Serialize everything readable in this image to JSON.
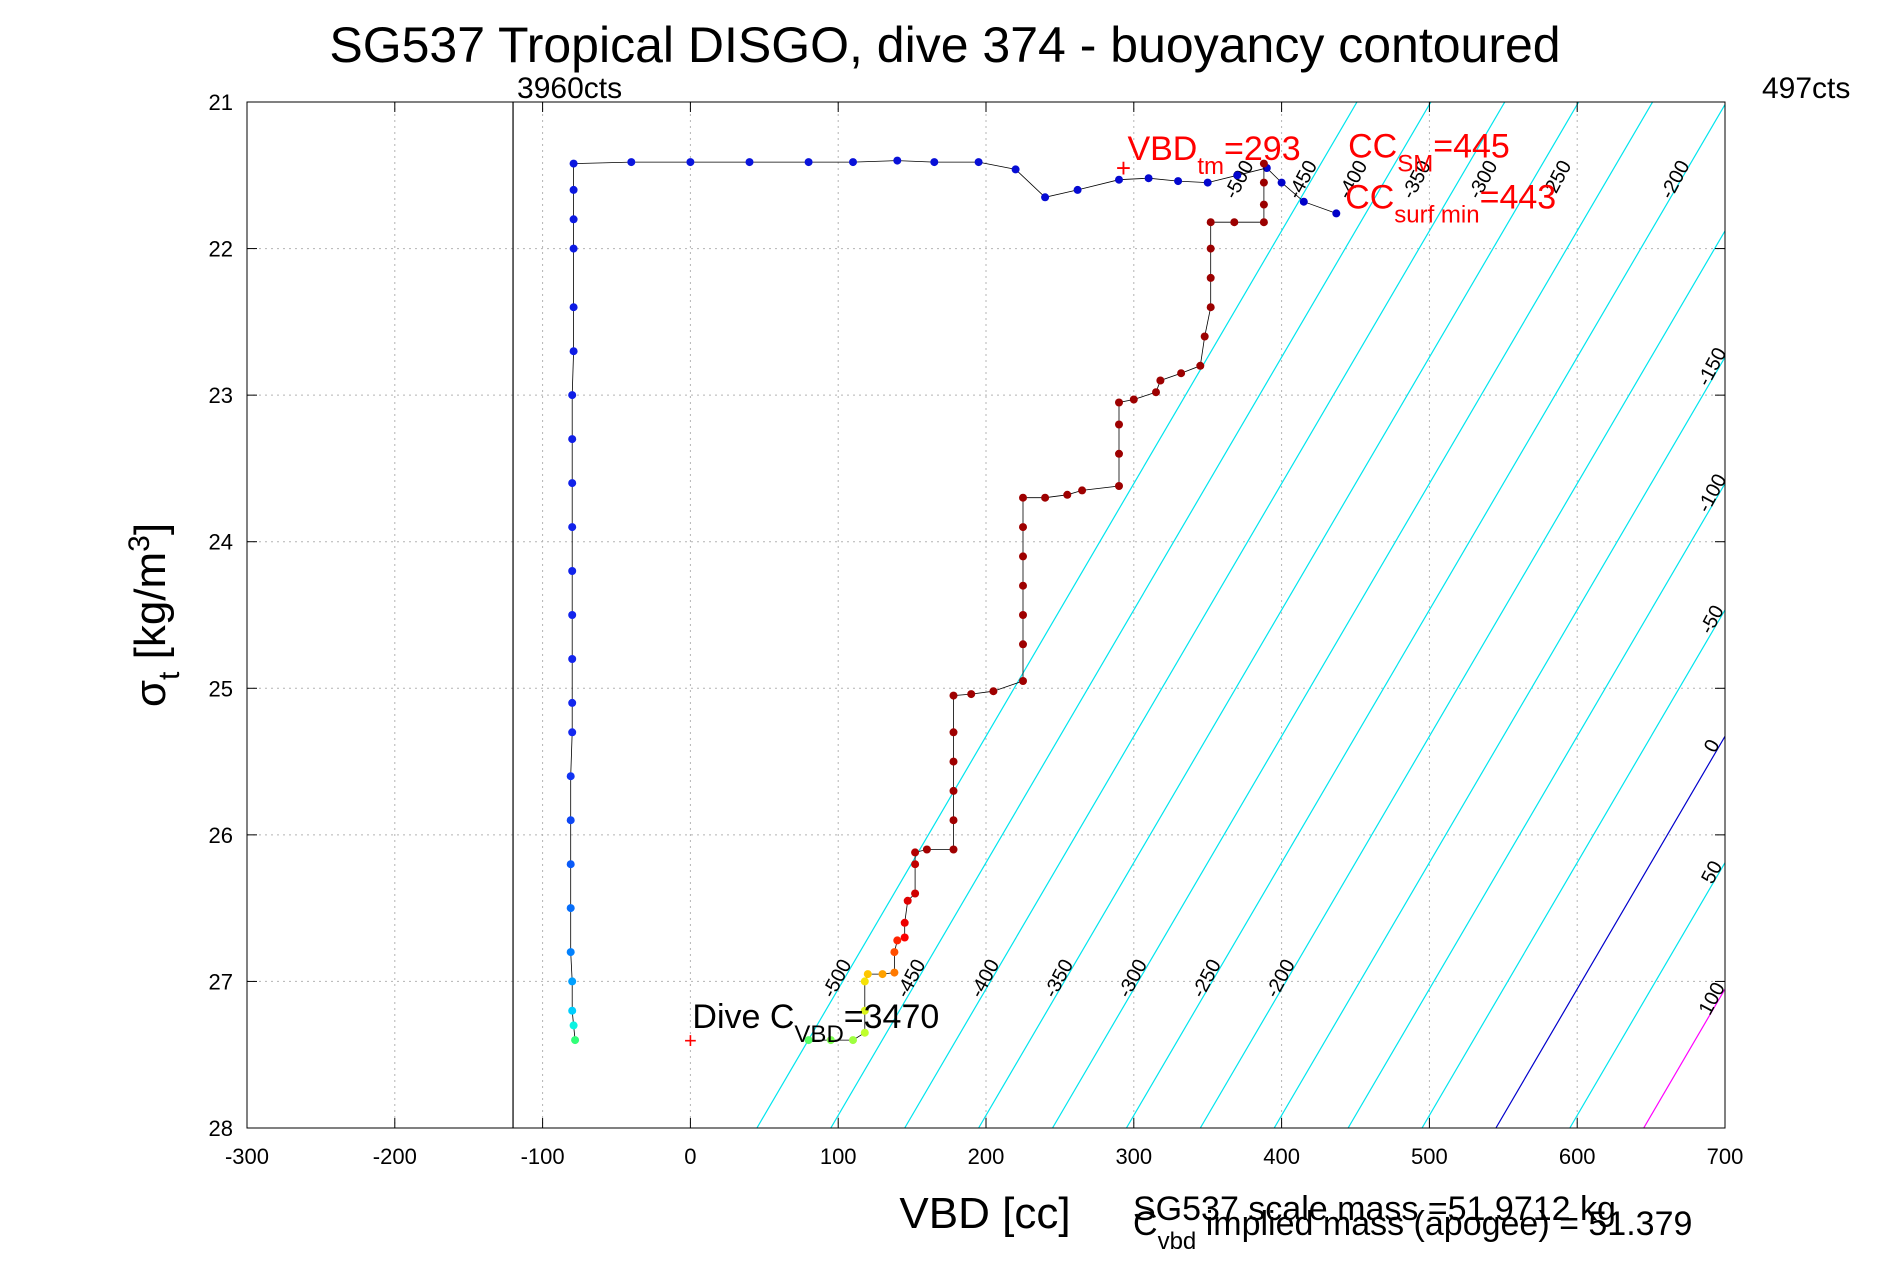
{
  "chart_data": {
    "type": "scatter",
    "title": "SG537 Tropical DISGO, dive 374 - buoyancy contoured",
    "xlabel": "VBD [cc]",
    "ylabel_main": "σ",
    "ylabel_sub": "t",
    "ylabel_rest": " [kg/m",
    "ylabel_sup": "3",
    "ylabel_close": "]",
    "xlim": [
      -300,
      700
    ],
    "ylim": [
      21,
      28
    ],
    "y_reversed": true,
    "grid": true,
    "x_ticks": [
      "-300",
      "-200",
      "-100",
      "0",
      "100",
      "200",
      "300",
      "400",
      "500",
      "600",
      "700"
    ],
    "y_ticks": [
      "21",
      "22",
      "23",
      "24",
      "25",
      "26",
      "27",
      "28"
    ],
    "colors": {
      "ascent": "#0000c8",
      "descent_deep": "#9b0000",
      "trace_line": "#000000",
      "contour_cyan": "#00e5ee",
      "contour_zero": "#0000cc",
      "contour_100": "#ff00ff",
      "annotation_red": "#ff0000"
    },
    "annotations": {
      "left_counts": "3960cts",
      "right_counts": "497cts",
      "left_count_line_x": -120,
      "vbd_tm_main": "VBD",
      "vbd_tm_sub": "tm",
      "vbd_tm_value": "=293",
      "vbd_tm_x": 293,
      "vbd_tm_y": 21.45,
      "cc_sm_main": "CC",
      "cc_sm_sub": "SM",
      "cc_sm_value": "=445",
      "cc_surf_main": "CC",
      "cc_surf_sub": "surf min",
      "cc_surf_value": "=443",
      "dive_c_main": "Dive C",
      "dive_c_sub": "VBD",
      "dive_c_value": "=3470",
      "dive_c_x": 0,
      "dive_c_y": 27.4,
      "scale_mass": "SG537 scale mass =51.9712 kg",
      "cvbd_main": "C",
      "cvbd_sub": "vbd",
      "cvbd_rest": " implied mass (apogee) = 51.379"
    },
    "contours": [
      {
        "label": "-500",
        "color": "cyan"
      },
      {
        "label": "-450",
        "color": "cyan"
      },
      {
        "label": "-400",
        "color": "cyan"
      },
      {
        "label": "-350",
        "color": "cyan"
      },
      {
        "label": "-300",
        "color": "cyan"
      },
      {
        "label": "-250",
        "color": "cyan"
      },
      {
        "label": "-200",
        "color": "cyan"
      },
      {
        "label": "-150",
        "color": "cyan"
      },
      {
        "label": "-100",
        "color": "cyan"
      },
      {
        "label": "-50",
        "color": "cyan"
      },
      {
        "label": "0",
        "color": "blue"
      },
      {
        "label": "50",
        "color": "cyan"
      },
      {
        "label": "100",
        "color": "magenta"
      }
    ],
    "contour_geometry": {
      "bottom_x_for_minus500": 45,
      "spacing": 50,
      "dx_per_sigma": -58
    },
    "series": [
      {
        "name": "ascent",
        "points": [
          [
            -78,
            27.4
          ],
          [
            -79,
            27.3
          ],
          [
            -80,
            27.2
          ],
          [
            -80,
            27.0
          ],
          [
            -81,
            26.8
          ],
          [
            -81,
            26.5
          ],
          [
            -81,
            26.2
          ],
          [
            -81,
            25.9
          ],
          [
            -81,
            25.6
          ],
          [
            -80,
            25.3
          ],
          [
            -80,
            25.1
          ],
          [
            -80,
            24.8
          ],
          [
            -80,
            24.5
          ],
          [
            -80,
            24.2
          ],
          [
            -80,
            23.9
          ],
          [
            -80,
            23.6
          ],
          [
            -80,
            23.3
          ],
          [
            -80,
            23.0
          ],
          [
            -79,
            22.7
          ],
          [
            -79,
            22.4
          ],
          [
            -79,
            22.0
          ],
          [
            -79,
            21.8
          ],
          [
            -79,
            21.6
          ],
          [
            -79,
            21.42
          ],
          [
            -40,
            21.41
          ],
          [
            0,
            21.41
          ],
          [
            40,
            21.41
          ],
          [
            80,
            21.41
          ],
          [
            110,
            21.41
          ],
          [
            140,
            21.4
          ],
          [
            165,
            21.41
          ],
          [
            195,
            21.41
          ],
          [
            220,
            21.46
          ],
          [
            240,
            21.65
          ],
          [
            262,
            21.6
          ],
          [
            290,
            21.53
          ],
          [
            310,
            21.52
          ],
          [
            330,
            21.54
          ],
          [
            350,
            21.55
          ],
          [
            370,
            21.5
          ],
          [
            390,
            21.45
          ],
          [
            400,
            21.55
          ],
          [
            415,
            21.68
          ],
          [
            437,
            21.76
          ]
        ]
      },
      {
        "name": "descent",
        "points": [
          [
            80,
            27.4
          ],
          [
            95,
            27.4
          ],
          [
            110,
            27.4
          ],
          [
            118,
            27.35
          ],
          [
            118,
            27.2
          ],
          [
            118,
            27.0
          ],
          [
            120,
            26.95
          ],
          [
            130,
            26.95
          ],
          [
            138,
            26.94
          ],
          [
            138,
            26.8
          ],
          [
            140,
            26.72
          ],
          [
            145,
            26.7
          ],
          [
            145,
            26.6
          ],
          [
            147,
            26.45
          ],
          [
            152,
            26.4
          ],
          [
            152,
            26.2
          ],
          [
            152,
            26.12
          ],
          [
            160,
            26.1
          ],
          [
            178,
            26.1
          ],
          [
            178,
            25.9
          ],
          [
            178,
            25.7
          ],
          [
            178,
            25.5
          ],
          [
            178,
            25.3
          ],
          [
            178,
            25.05
          ],
          [
            190,
            25.04
          ],
          [
            205,
            25.02
          ],
          [
            225,
            24.95
          ],
          [
            225,
            24.7
          ],
          [
            225,
            24.5
          ],
          [
            225,
            24.3
          ],
          [
            225,
            24.1
          ],
          [
            225,
            23.9
          ],
          [
            225,
            23.7
          ],
          [
            240,
            23.7
          ],
          [
            255,
            23.68
          ],
          [
            265,
            23.65
          ],
          [
            290,
            23.62
          ],
          [
            290,
            23.4
          ],
          [
            290,
            23.2
          ],
          [
            290,
            23.05
          ],
          [
            300,
            23.03
          ],
          [
            315,
            22.98
          ],
          [
            318,
            22.9
          ],
          [
            332,
            22.85
          ],
          [
            345,
            22.8
          ],
          [
            348,
            22.6
          ],
          [
            352,
            22.4
          ],
          [
            352,
            22.2
          ],
          [
            352,
            22.0
          ],
          [
            352,
            21.82
          ],
          [
            368,
            21.82
          ],
          [
            388,
            21.82
          ],
          [
            388,
            21.7
          ],
          [
            388,
            21.55
          ],
          [
            388,
            21.42
          ]
        ]
      }
    ]
  }
}
